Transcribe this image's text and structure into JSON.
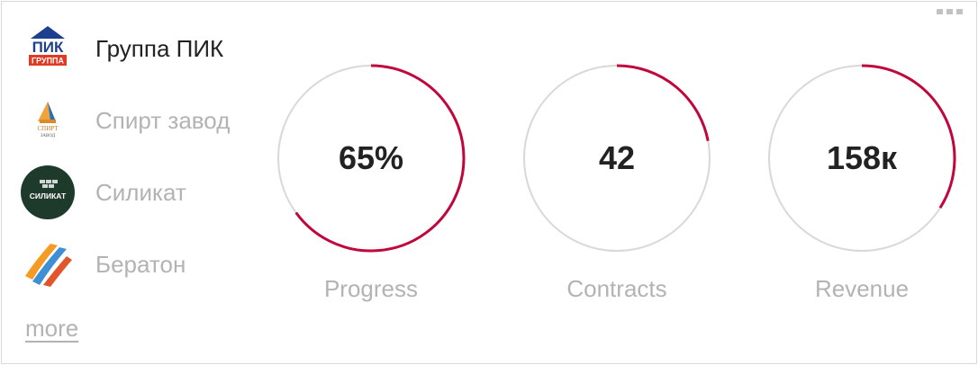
{
  "companies": [
    {
      "name": "Группа ПИК",
      "active": true,
      "logo_text": "ПИК",
      "logo_sub": "ГРУППА"
    },
    {
      "name": "Спирт завод",
      "active": false,
      "logo_text": "СПИРТ",
      "logo_sub": "ЗАВОД"
    },
    {
      "name": "Силикат",
      "active": false,
      "logo_text": "СИЛИКАТ"
    },
    {
      "name": "Бератон",
      "active": false
    }
  ],
  "more_label": "more",
  "metrics": [
    {
      "value_text": "65%",
      "label": "Progress",
      "fraction": 0.65
    },
    {
      "value_text": "42",
      "label": "Contracts",
      "fraction": 0.22
    },
    {
      "value_text": "158к",
      "label": "Revenue",
      "fraction": 0.34
    }
  ],
  "colors": {
    "accent": "#c0063a",
    "track": "#d9d9d9",
    "pik_blue": "#1e3f8f",
    "pik_red": "#e13a24",
    "silikat_green": "#1e3a2b"
  }
}
